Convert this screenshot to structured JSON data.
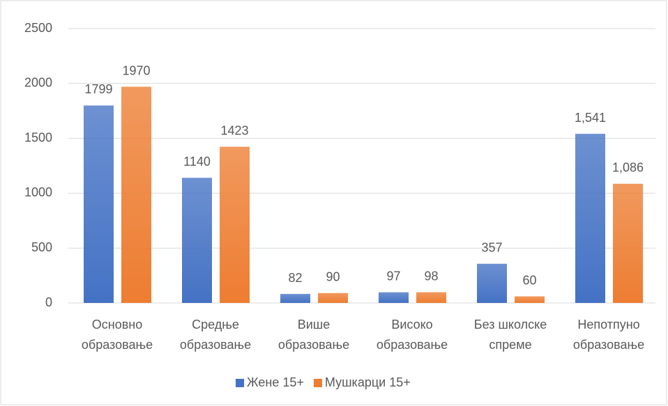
{
  "chart_data": {
    "type": "bar",
    "categories": [
      [
        "Основно",
        "образовање"
      ],
      [
        "Средње",
        "образовање"
      ],
      [
        "Више",
        "образовање"
      ],
      [
        "Високо",
        "образовање"
      ],
      [
        "Без школске",
        "спреме"
      ],
      [
        "Непотпуно",
        "образовање"
      ]
    ],
    "series": [
      {
        "name": "Жене 15+",
        "color": "#4472c4",
        "values": [
          1799,
          1140,
          82,
          97,
          357,
          1541
        ],
        "value_labels": [
          "1799",
          "1140",
          "82",
          "97",
          "357",
          "1,541"
        ]
      },
      {
        "name": "Мушкарци 15+",
        "color": "#ed7d31",
        "values": [
          1970,
          1423,
          90,
          98,
          60,
          1086
        ],
        "value_labels": [
          "1970",
          "1423",
          "90",
          "98",
          "60",
          "1,086"
        ]
      }
    ],
    "ylim": [
      0,
      2500
    ],
    "yticks": [
      0,
      500,
      1000,
      1500,
      2000,
      2500
    ],
    "grid": true,
    "legend": "bottom"
  }
}
